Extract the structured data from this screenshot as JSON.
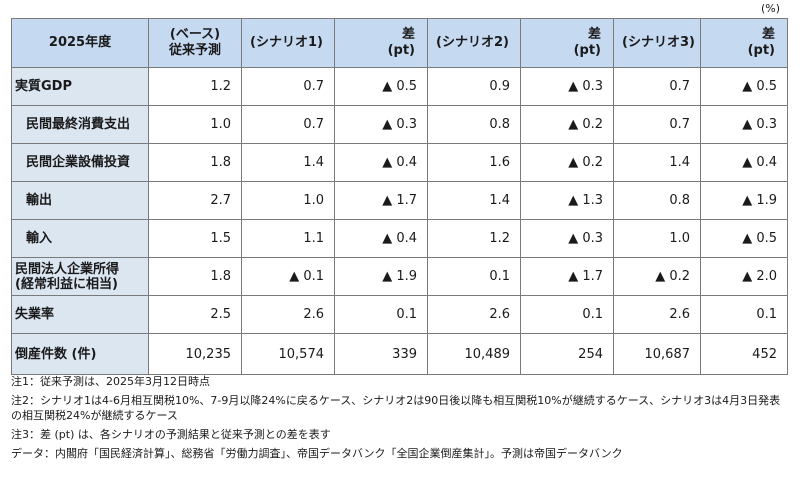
{
  "unit": "(%)",
  "table": {
    "headers": [
      "2025年度",
      "(ベース)\n従来予測",
      "(シナリオ1)",
      "差\n(pt)",
      "(シナリオ2)",
      "差\n(pt)",
      "(シナリオ3)",
      "差\n(pt)"
    ],
    "rows": [
      {
        "label": "実質GDP",
        "values": [
          "1.2",
          "0.7",
          "▲ 0.5",
          "0.9",
          "▲ 0.3",
          "0.7",
          "▲ 0.5"
        ]
      },
      {
        "label": "民間最終消費支出",
        "values": [
          "1.0",
          "0.7",
          "▲ 0.3",
          "0.8",
          "▲ 0.2",
          "0.7",
          "▲ 0.3"
        ]
      },
      {
        "label": "民間企業設備投資",
        "values": [
          "1.8",
          "1.4",
          "▲ 0.4",
          "1.6",
          "▲ 0.2",
          "1.4",
          "▲ 0.4"
        ]
      },
      {
        "label": "輸出",
        "values": [
          "2.7",
          "1.0",
          "▲ 1.7",
          "1.4",
          "▲ 1.3",
          "0.8",
          "▲ 1.9"
        ]
      },
      {
        "label": "輸入",
        "values": [
          "1.5",
          "1.1",
          "▲ 0.4",
          "1.2",
          "▲ 0.3",
          "1.0",
          "▲ 0.5"
        ]
      },
      {
        "label": "民間法人企業所得\n(経常利益に相当)",
        "values": [
          "1.8",
          "▲ 0.1",
          "▲ 1.9",
          "0.1",
          "▲ 1.7",
          "▲ 0.2",
          "▲ 2.0"
        ]
      },
      {
        "label": "失業率",
        "values": [
          "2.5",
          "2.6",
          "0.1",
          "2.6",
          "0.1",
          "2.6",
          "0.1"
        ]
      },
      {
        "label": "倒産件数 (件)",
        "values": [
          "10,235",
          "10,574",
          "339",
          "10,489",
          "254",
          "10,687",
          "452"
        ]
      }
    ]
  },
  "notes": [
    "注1：従来予測は、2025年3月12日時点",
    "注2：シナリオ1は4-6月相互関税10%、7-9月以降24%に戻るケース、シナリオ2は90日後以降も相互関税10%が継続するケース、シナリオ3は4月3日発表の相互関税24%が継続するケース",
    "注3：差 (pt) は、各シナリオの予測結果と従来予測との差を表す",
    "データ：内閣府「国民経済計算」、総務省「労働力調査」、帝国データバンク「全国企業倒産集計」。予測は帝国データバンク"
  ]
}
